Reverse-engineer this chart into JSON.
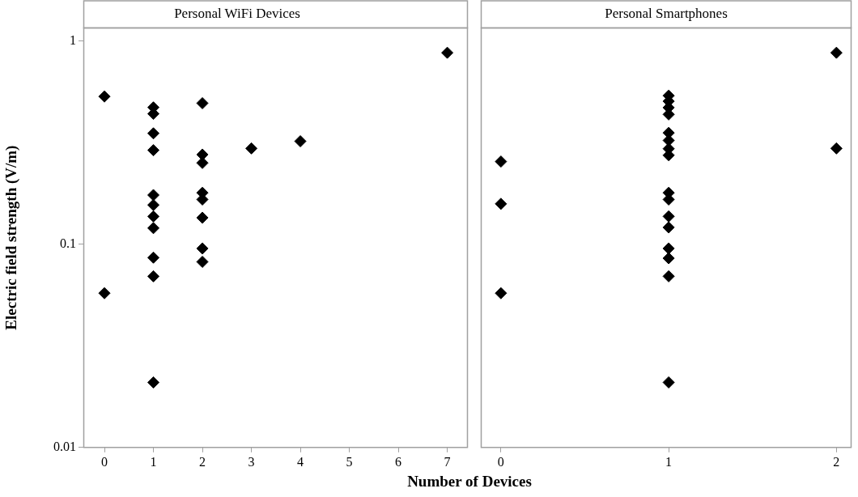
{
  "chart_data": [
    {
      "type": "scatter",
      "title": "Personal WiFi Devices",
      "xlabel": "Number of Devices",
      "ylabel": "Electric field strength (V/m)",
      "color": "#000000",
      "marker": "diamond",
      "log": "y",
      "x": [
        0,
        0,
        1,
        1,
        1,
        1,
        1,
        1,
        1,
        1,
        1,
        1,
        1,
        2,
        2,
        2,
        2,
        2,
        2,
        2,
        2,
        3,
        4,
        7
      ],
      "values": [
        0.533,
        0.0574,
        0.471,
        0.438,
        0.351,
        0.29,
        0.1745,
        0.156,
        0.137,
        0.12,
        0.0859,
        0.0695,
        0.0209,
        0.494,
        0.276,
        0.251,
        0.179,
        0.166,
        0.135,
        0.0953,
        0.0819,
        0.296,
        0.321,
        0.875
      ],
      "xlim": [
        -0.43,
        7.42
      ],
      "xticks": [
        0,
        1,
        2,
        3,
        4,
        5,
        6,
        7
      ],
      "ylim": [
        0.01,
        1.16
      ],
      "yticks": [
        0.01,
        0.1,
        1
      ]
    },
    {
      "type": "scatter",
      "title": "Personal Smartphones",
      "color": "#000000",
      "marker": "diamond",
      "log": "y",
      "tick_labels": "x",
      "x": [
        0,
        0,
        0,
        1,
        1,
        1,
        1,
        1,
        1,
        1,
        1,
        1,
        1,
        1,
        1,
        1,
        1,
        1,
        1,
        2,
        2
      ],
      "values": [
        0.255,
        0.158,
        0.0574,
        0.538,
        0.505,
        0.47,
        0.435,
        0.353,
        0.324,
        0.295,
        0.274,
        0.179,
        0.166,
        0.137,
        0.121,
        0.0953,
        0.0853,
        0.0695,
        0.0209,
        0.875,
        0.296
      ],
      "xlim": [
        -0.12,
        2.09
      ],
      "xticks": [
        0,
        1,
        2
      ],
      "ylim": [
        0.01,
        1.16
      ],
      "yticks": [
        0.01,
        0.1,
        1
      ]
    }
  ]
}
